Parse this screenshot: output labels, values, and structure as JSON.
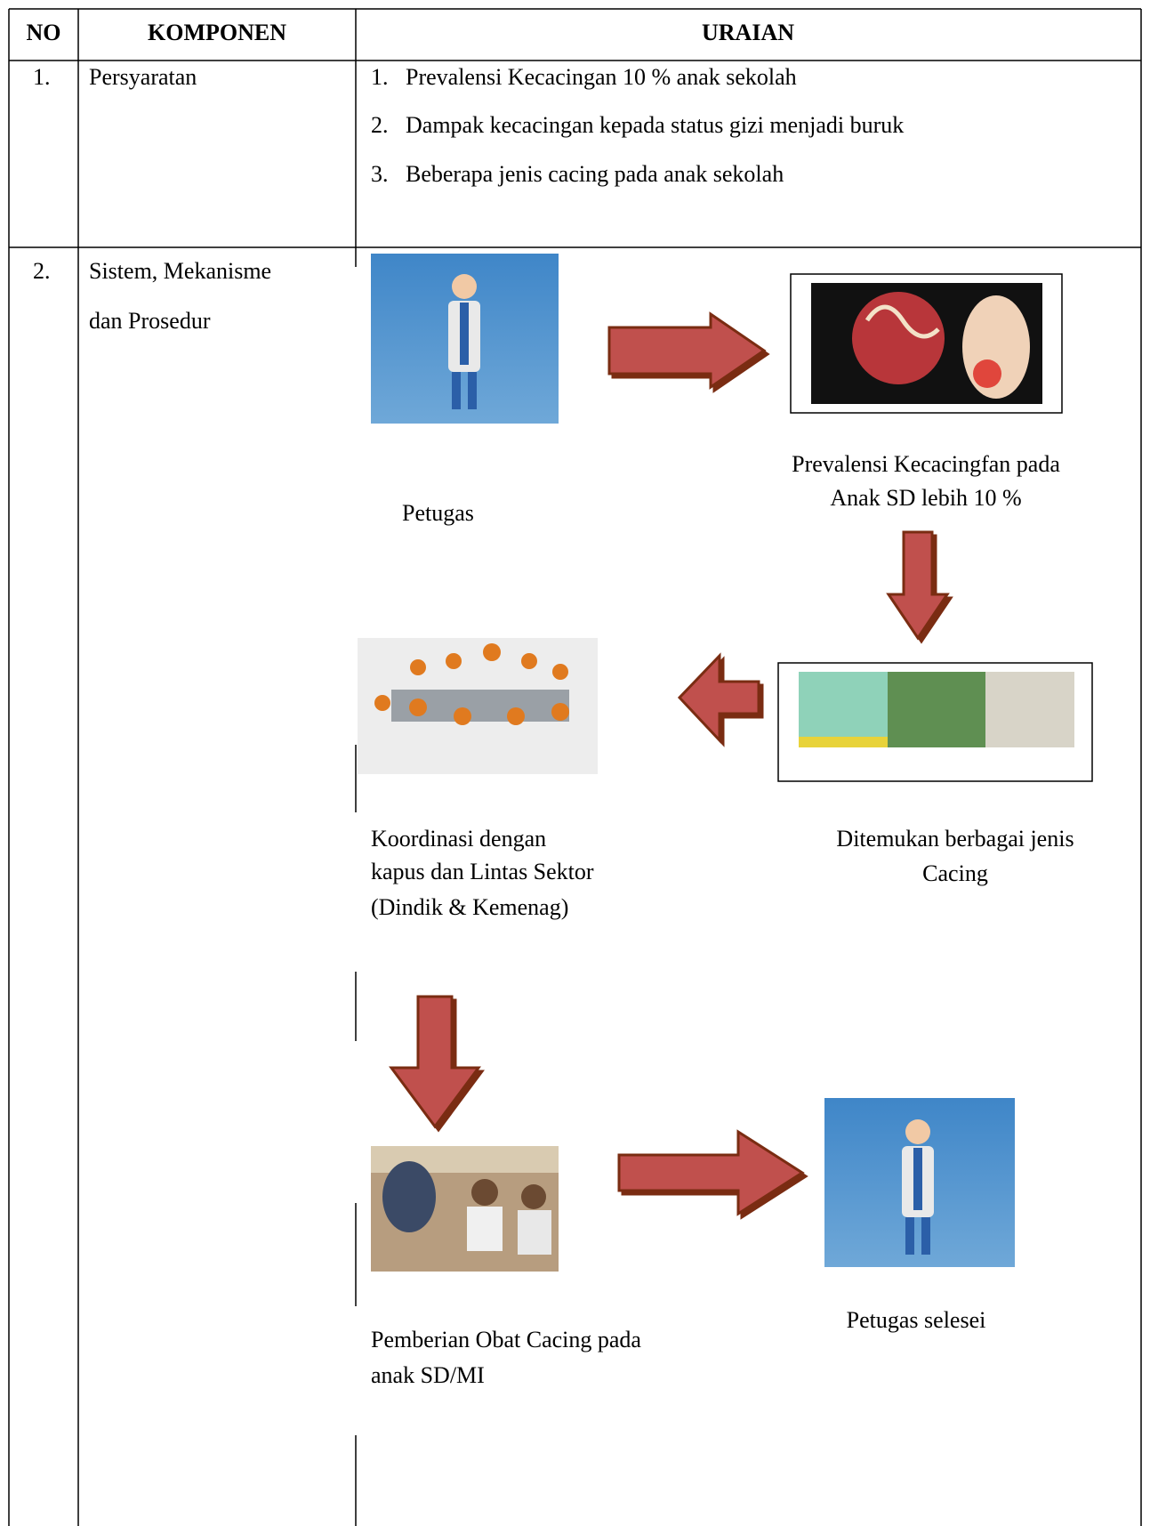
{
  "table": {
    "header": [
      "NO",
      "KOMPONEN",
      "URAIAN"
    ],
    "rows": [
      {
        "no": "1.",
        "komponen": [
          "Persyaratan"
        ],
        "uraian": [
          {
            "number": "1.",
            "text": "Prevalensi Kecacingan 10 % anak sekolah"
          },
          {
            "number": "2.",
            "text": "Dampak kecacingan kepada status gizi menjadi buruk"
          },
          {
            "number": "3.",
            "text": "Beberapa jenis cacing pada anak sekolah"
          }
        ]
      },
      {
        "no": "2.",
        "komponen": [
          "Sistem, Mekanisme",
          "dan Prosedur"
        ],
        "flow": [
          {
            "caption": [
              "Petugas"
            ]
          },
          {
            "caption": [
              "Prevalensi Kecacingfan pada",
              "Anak SD lebih 10 %"
            ]
          },
          {
            "caption": [
              "Ditemukan berbagai jenis",
              "Cacing"
            ]
          },
          {
            "caption": [
              "Koordinasi dengan",
              "kapus dan Lintas Sektor",
              "(Dindik & Kemenag)"
            ]
          },
          {
            "caption": [
              "Pemberian Obat Cacing pada",
              "anak SD/MI"
            ]
          },
          {
            "caption": [
              "Petugas selesei"
            ]
          }
        ]
      }
    ]
  }
}
